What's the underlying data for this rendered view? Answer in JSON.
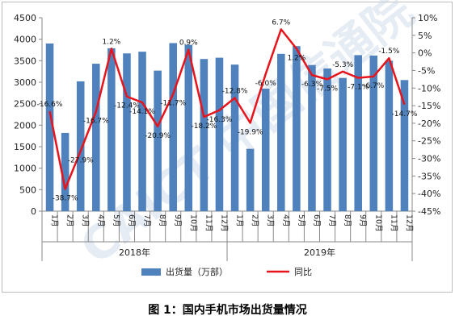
{
  "caption": "图 1：国内手机市场出货量情况",
  "watermark": "CAICT 中国信通院",
  "colors": {
    "bar": "#4f81bd",
    "line": "#e8141b",
    "axis": "#888888"
  },
  "chart_data": {
    "type": "bar+line",
    "categories": [
      "1月",
      "2月",
      "3月",
      "4月",
      "5月",
      "6月",
      "7月",
      "8月",
      "9月",
      "10月",
      "11月",
      "12月",
      "1月",
      "2月",
      "3月",
      "4月",
      "5月",
      "6月",
      "7月",
      "8月",
      "9月",
      "10月",
      "11月",
      "12月"
    ],
    "year_groups": [
      {
        "label": "2018年",
        "start": 0,
        "end": 11
      },
      {
        "label": "2019年",
        "start": 12,
        "end": 23
      }
    ],
    "series": [
      {
        "name": "出货量（万部）",
        "type": "bar",
        "axis": "left",
        "values": [
          3900,
          1820,
          3020,
          3430,
          3790,
          3670,
          3710,
          3270,
          3910,
          3870,
          3540,
          3570,
          3410,
          1450,
          2850,
          3660,
          3840,
          3400,
          3320,
          3100,
          3630,
          3620,
          3500,
          3050
        ]
      },
      {
        "name": "同比",
        "type": "line",
        "axis": "right",
        "values": [
          -16.6,
          -38.7,
          -27.9,
          -16.7,
          1.2,
          -12.4,
          -14.1,
          -20.9,
          -11.7,
          0.9,
          -18.2,
          -16.3,
          -12.8,
          -19.9,
          -6.0,
          6.7,
          1.2,
          -6.3,
          -7.5,
          -5.3,
          -7.1,
          -6.7,
          -1.5,
          -14.7
        ],
        "labels": [
          "-16.6%",
          "-38.7%",
          "-27.9%",
          "-16.7%",
          "1.2%",
          "-12.4%",
          "-14.1%",
          "-20.9%",
          "-11.7%",
          "0.9%",
          "-18.2%",
          "-16.3%",
          "-12.8%",
          "-19.9%",
          "-6.0%",
          "6.7%",
          "1.2%",
          "-6.3%",
          "-7.5%",
          "-5.3%",
          "-7.1%",
          "-6.7%",
          "-1.5%",
          "-14.7%"
        ]
      }
    ],
    "left_axis": {
      "min": 0,
      "max": 4500,
      "step": 500,
      "ticks": [
        "0",
        "500",
        "1000",
        "1500",
        "2000",
        "2500",
        "3000",
        "3500",
        "4000",
        "4500"
      ]
    },
    "right_axis": {
      "min": -45,
      "max": 10,
      "step": 5,
      "ticks": [
        "10%",
        "5%",
        "0%",
        "-5%",
        "-10%",
        "-15%",
        "-20%",
        "-25%",
        "-30%",
        "-35%",
        "-40%",
        "-45%"
      ]
    },
    "legend": {
      "position": "bottom",
      "items": [
        "出货量（万部）",
        "同比"
      ]
    },
    "grid": false
  }
}
